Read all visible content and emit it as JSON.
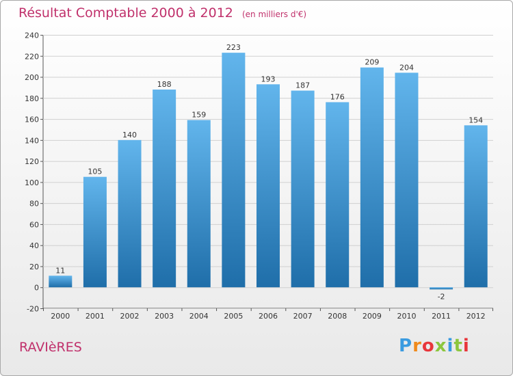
{
  "title": "Résultat Comptable 2000 à 2012",
  "unit": "(en milliers d'€)",
  "place": "RAVIèRES",
  "logo": {
    "text": "Proxiti",
    "colors": [
      "#3a9be0",
      "#f08a1c",
      "#e8363b",
      "#8cc63e",
      "#3a9be0",
      "#8cc63e",
      "#e8363b"
    ]
  },
  "colors": {
    "bar_light": "#62b5ec",
    "bar_dark": "#1f6ea9",
    "title": "#c0306b",
    "grid": "#d0d0d0"
  },
  "chart_data": {
    "type": "bar",
    "title": "Résultat Comptable 2000 à 2012",
    "categories": [
      "2000",
      "2001",
      "2002",
      "2003",
      "2004",
      "2005",
      "2006",
      "2007",
      "2008",
      "2009",
      "2010",
      "2011",
      "2012"
    ],
    "values": [
      11,
      105,
      140,
      188,
      159,
      223,
      193,
      187,
      176,
      209,
      204,
      -2,
      154
    ],
    "ylim": [
      -20,
      240
    ],
    "yticks": [
      -20,
      0,
      20,
      40,
      60,
      80,
      100,
      120,
      140,
      160,
      180,
      200,
      220,
      240
    ],
    "xlabel": "",
    "ylabel": "",
    "grid": true
  }
}
